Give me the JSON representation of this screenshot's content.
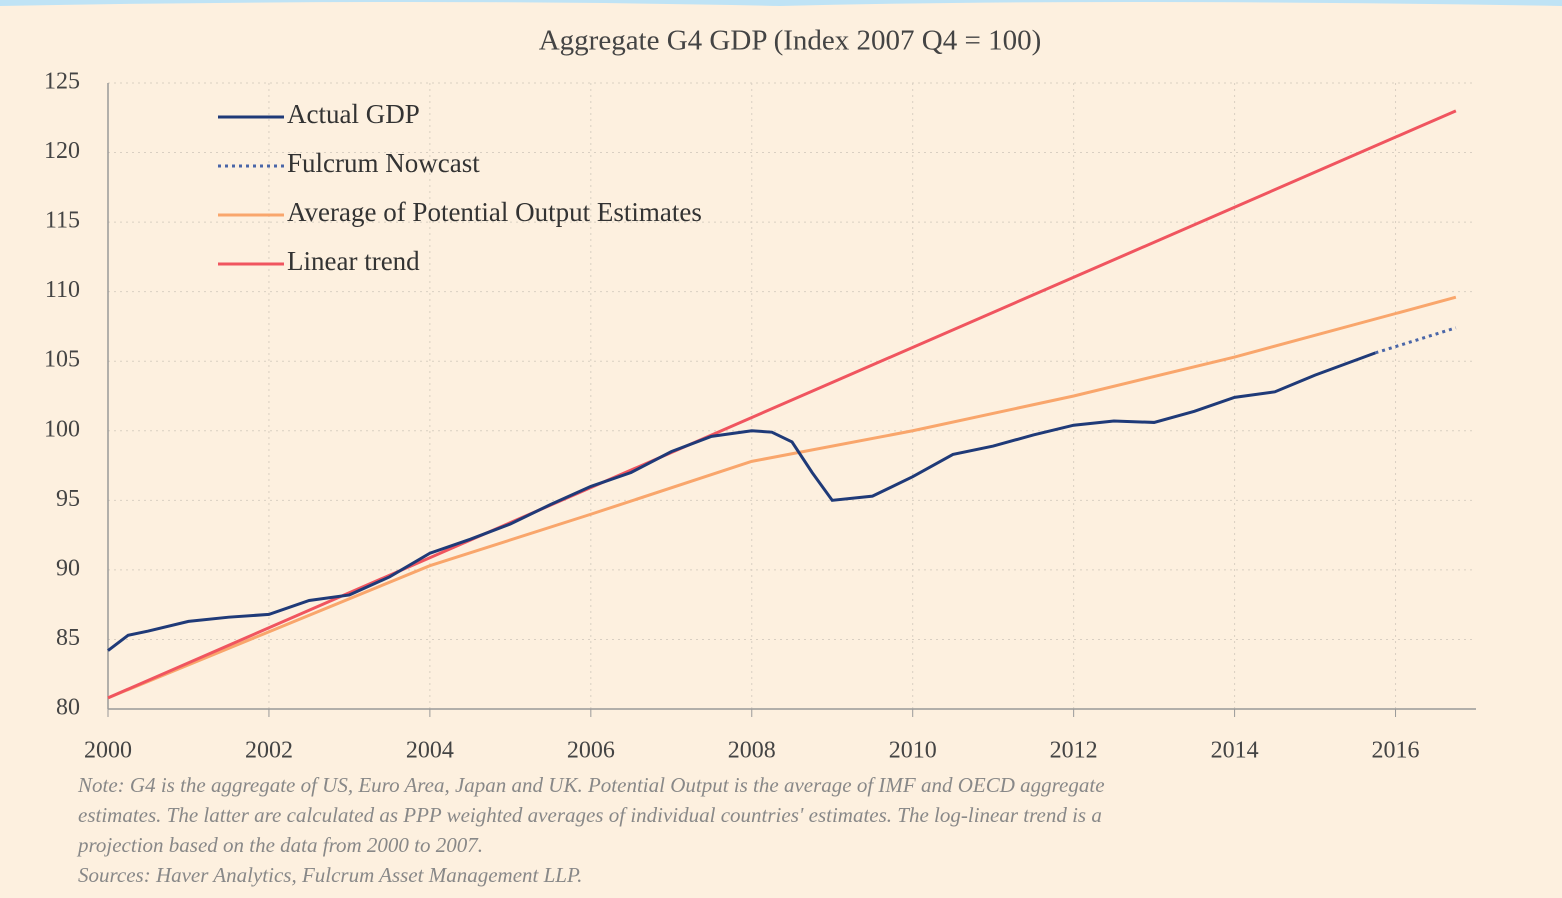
{
  "chart_data": {
    "type": "line",
    "title": "Aggregate G4 GDP (Index 2007 Q4 = 100)",
    "xlim": [
      2000,
      2017
    ],
    "xticks": [
      2000,
      2002,
      2004,
      2006,
      2008,
      2010,
      2012,
      2014,
      2016
    ],
    "ylim": [
      80,
      125
    ],
    "yticks": [
      80,
      85,
      90,
      95,
      100,
      105,
      110,
      115,
      120,
      125
    ],
    "grid": true,
    "legend": "upper left",
    "series": [
      {
        "name": "Actual GDP",
        "color": "#1f3a78",
        "style": "solid",
        "x": [
          2000,
          2000.25,
          2000.5,
          2001,
          2001.5,
          2002,
          2002.5,
          2003,
          2003.5,
          2004,
          2004.5,
          2005,
          2005.5,
          2006,
          2006.5,
          2007,
          2007.5,
          2008,
          2008.25,
          2008.5,
          2008.75,
          2009,
          2009.5,
          2010,
          2010.5,
          2011,
          2011.5,
          2012,
          2012.5,
          2013,
          2013.5,
          2014,
          2014.5,
          2015,
          2015.75
        ],
        "values": [
          84.2,
          85.3,
          85.6,
          86.3,
          86.6,
          86.8,
          87.8,
          88.2,
          89.5,
          91.2,
          92.2,
          93.3,
          94.7,
          96.0,
          97.0,
          98.5,
          99.6,
          100.0,
          99.9,
          99.2,
          97.0,
          95.0,
          95.3,
          96.7,
          98.3,
          98.9,
          99.7,
          100.4,
          100.7,
          100.6,
          101.4,
          102.4,
          102.8,
          104.0,
          105.6
        ]
      },
      {
        "name": "Fulcrum Nowcast",
        "color": "#4a66a8",
        "style": "dotted",
        "x": [
          2015.75,
          2016.75
        ],
        "values": [
          105.6,
          107.4
        ]
      },
      {
        "name": "Average of Potential Output Estimates",
        "color": "#f9a66c",
        "style": "solid",
        "x": [
          2000,
          2004,
          2006,
          2008,
          2010,
          2012,
          2014,
          2016.75
        ],
        "values": [
          80.8,
          90.3,
          94.0,
          97.8,
          100.0,
          102.5,
          105.3,
          109.6
        ]
      },
      {
        "name": "Linear trend",
        "color": "#f0555f",
        "style": "solid",
        "x": [
          2000,
          2016.75
        ],
        "values": [
          80.8,
          123.0
        ]
      }
    ],
    "notes": [
      "Note: G4 is the aggregate of US, Euro Area, Japan and UK. Potential Output is the average of IMF and OECD aggregate",
      "estimates. The latter are calculated as PPP weighted averages of individual countries' estimates. The log-linear trend is a",
      "projection based on the  data from 2000 to 2007.",
      "Sources: Haver Analytics, Fulcrum Asset Management LLP."
    ]
  }
}
